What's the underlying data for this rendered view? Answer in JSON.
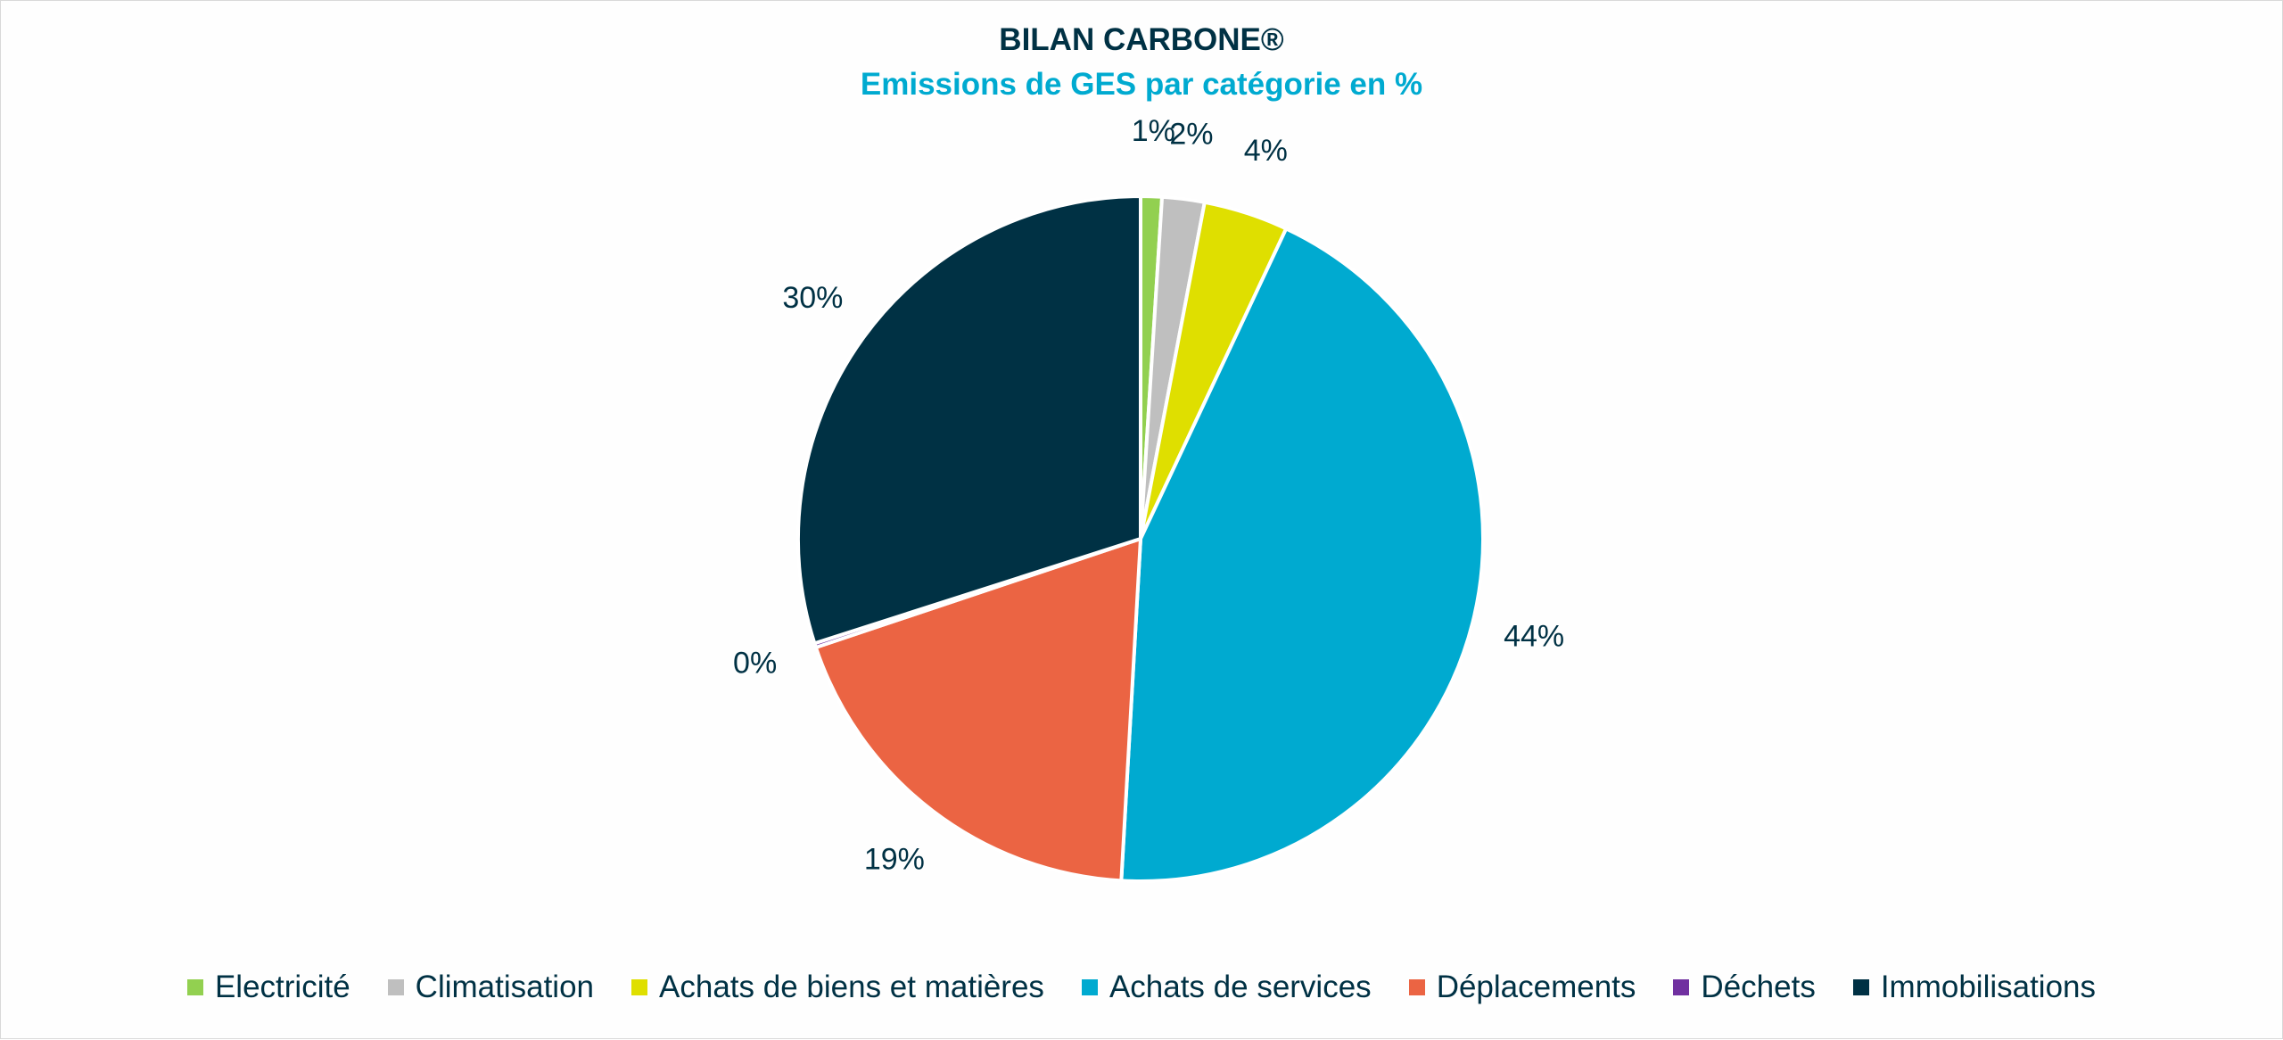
{
  "chart_data": {
    "type": "pie",
    "title": "BILAN CARBONE®",
    "subtitle": "Emissions de GES par catégorie en %",
    "start_angle_deg": 0,
    "direction": "clockwise",
    "slices": [
      {
        "label": "Electricité",
        "value": 1,
        "data_label": "1%",
        "color": "#92D050"
      },
      {
        "label": "Climatisation",
        "value": 2,
        "data_label": "2%",
        "color": "#BFBFBF"
      },
      {
        "label": "Achats de biens et matières",
        "value": 4,
        "data_label": "4%",
        "color": "#DFDF00"
      },
      {
        "label": "Achats de services",
        "value": 44,
        "data_label": "44%",
        "color": "#00AAD0"
      },
      {
        "label": "Déplacements",
        "value": 19,
        "data_label": "19%",
        "color": "#EB6443"
      },
      {
        "label": "Déchets",
        "value": 0.2,
        "data_label": "0%",
        "color": "#7030A0"
      },
      {
        "label": "Immobilisations",
        "value": 30,
        "data_label": "30%",
        "color": "#003144"
      }
    ],
    "legend_position": "bottom",
    "text_color": "#003144"
  }
}
